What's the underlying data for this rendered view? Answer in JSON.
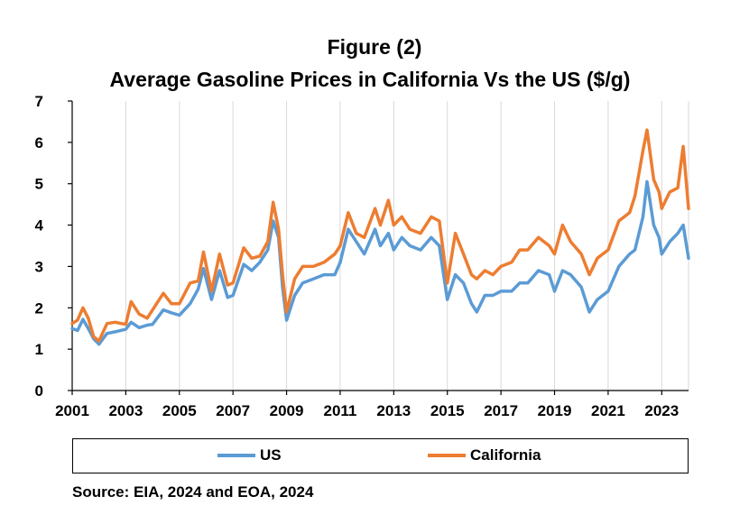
{
  "figure": {
    "title_line1": "Figure (2)",
    "title_line2": "Average Gasoline Prices in California Vs the US ($/g)",
    "source": "Source: EIA, 2024 and EOA, 2024"
  },
  "chart_data": {
    "type": "line",
    "title": "Figure (2) Average Gasoline Prices in California Vs the US ($/g)",
    "xlabel": "",
    "ylabel": "",
    "xlim": [
      2001,
      2024
    ],
    "ylim": [
      0,
      7
    ],
    "x_ticks": [
      2001,
      2003,
      2005,
      2007,
      2009,
      2011,
      2013,
      2015,
      2017,
      2019,
      2021,
      2023
    ],
    "y_ticks": [
      0,
      1,
      2,
      3,
      4,
      5,
      6,
      7
    ],
    "grid": "vertical",
    "legend": "bottom",
    "series": [
      {
        "name": "US",
        "color": "#5B9BD5",
        "x": [
          2001.0,
          2001.2,
          2001.4,
          2001.6,
          2001.8,
          2002.0,
          2002.3,
          2002.6,
          2003.0,
          2003.2,
          2003.5,
          2003.8,
          2004.0,
          2004.4,
          2004.7,
          2005.0,
          2005.4,
          2005.7,
          2005.9,
          2006.2,
          2006.5,
          2006.8,
          2007.0,
          2007.4,
          2007.7,
          2008.0,
          2008.3,
          2008.5,
          2008.7,
          2008.85,
          2009.0,
          2009.3,
          2009.6,
          2010.0,
          2010.4,
          2010.8,
          2011.0,
          2011.3,
          2011.6,
          2011.9,
          2012.3,
          2012.5,
          2012.8,
          2013.0,
          2013.3,
          2013.6,
          2014.0,
          2014.4,
          2014.7,
          2015.0,
          2015.3,
          2015.6,
          2015.9,
          2016.1,
          2016.4,
          2016.7,
          2017.0,
          2017.4,
          2017.7,
          2018.0,
          2018.4,
          2018.8,
          2019.0,
          2019.3,
          2019.6,
          2020.0,
          2020.3,
          2020.6,
          2021.0,
          2021.4,
          2021.8,
          2022.0,
          2022.3,
          2022.45,
          2022.7,
          2022.9,
          2023.0,
          2023.3,
          2023.6,
          2023.8,
          2024.0
        ],
        "values": [
          1.5,
          1.45,
          1.72,
          1.5,
          1.25,
          1.12,
          1.38,
          1.42,
          1.48,
          1.65,
          1.52,
          1.58,
          1.6,
          1.95,
          1.88,
          1.82,
          2.1,
          2.45,
          2.95,
          2.2,
          2.9,
          2.25,
          2.3,
          3.05,
          2.9,
          3.1,
          3.4,
          4.1,
          3.7,
          2.5,
          1.7,
          2.3,
          2.6,
          2.7,
          2.8,
          2.8,
          3.1,
          3.9,
          3.6,
          3.3,
          3.9,
          3.5,
          3.8,
          3.4,
          3.7,
          3.5,
          3.4,
          3.7,
          3.5,
          2.2,
          2.8,
          2.6,
          2.1,
          1.9,
          2.3,
          2.3,
          2.4,
          2.4,
          2.6,
          2.6,
          2.9,
          2.8,
          2.4,
          2.9,
          2.8,
          2.5,
          1.9,
          2.2,
          2.4,
          3.0,
          3.3,
          3.4,
          4.2,
          5.05,
          4.0,
          3.7,
          3.3,
          3.6,
          3.8,
          4.0,
          3.2
        ]
      },
      {
        "name": "California",
        "color": "#ED7D31",
        "x": [
          2001.0,
          2001.2,
          2001.4,
          2001.6,
          2001.8,
          2002.0,
          2002.3,
          2002.6,
          2003.0,
          2003.2,
          2003.5,
          2003.8,
          2004.0,
          2004.4,
          2004.7,
          2005.0,
          2005.4,
          2005.7,
          2005.9,
          2006.2,
          2006.5,
          2006.8,
          2007.0,
          2007.4,
          2007.7,
          2008.0,
          2008.3,
          2008.5,
          2008.7,
          2008.85,
          2009.0,
          2009.3,
          2009.6,
          2010.0,
          2010.4,
          2010.8,
          2011.0,
          2011.3,
          2011.6,
          2011.9,
          2012.3,
          2012.5,
          2012.8,
          2013.0,
          2013.3,
          2013.6,
          2014.0,
          2014.4,
          2014.7,
          2015.0,
          2015.3,
          2015.6,
          2015.9,
          2016.1,
          2016.4,
          2016.7,
          2017.0,
          2017.4,
          2017.7,
          2018.0,
          2018.4,
          2018.8,
          2019.0,
          2019.3,
          2019.6,
          2020.0,
          2020.3,
          2020.6,
          2021.0,
          2021.4,
          2021.8,
          2022.0,
          2022.3,
          2022.45,
          2022.7,
          2022.9,
          2023.0,
          2023.3,
          2023.6,
          2023.8,
          2024.0
        ],
        "values": [
          1.62,
          1.7,
          2.0,
          1.75,
          1.3,
          1.2,
          1.62,
          1.65,
          1.6,
          2.15,
          1.85,
          1.75,
          1.95,
          2.35,
          2.1,
          2.1,
          2.6,
          2.65,
          3.35,
          2.4,
          3.3,
          2.55,
          2.6,
          3.45,
          3.2,
          3.25,
          3.6,
          4.55,
          3.9,
          2.8,
          1.9,
          2.7,
          3.0,
          3.0,
          3.1,
          3.3,
          3.5,
          4.3,
          3.8,
          3.7,
          4.4,
          4.0,
          4.6,
          4.0,
          4.2,
          3.9,
          3.8,
          4.2,
          4.1,
          2.6,
          3.8,
          3.3,
          2.8,
          2.7,
          2.9,
          2.8,
          3.0,
          3.1,
          3.4,
          3.4,
          3.7,
          3.5,
          3.3,
          4.0,
          3.6,
          3.3,
          2.8,
          3.2,
          3.4,
          4.1,
          4.3,
          4.7,
          5.8,
          6.3,
          5.1,
          4.8,
          4.4,
          4.8,
          4.9,
          5.9,
          4.4
        ]
      }
    ]
  }
}
